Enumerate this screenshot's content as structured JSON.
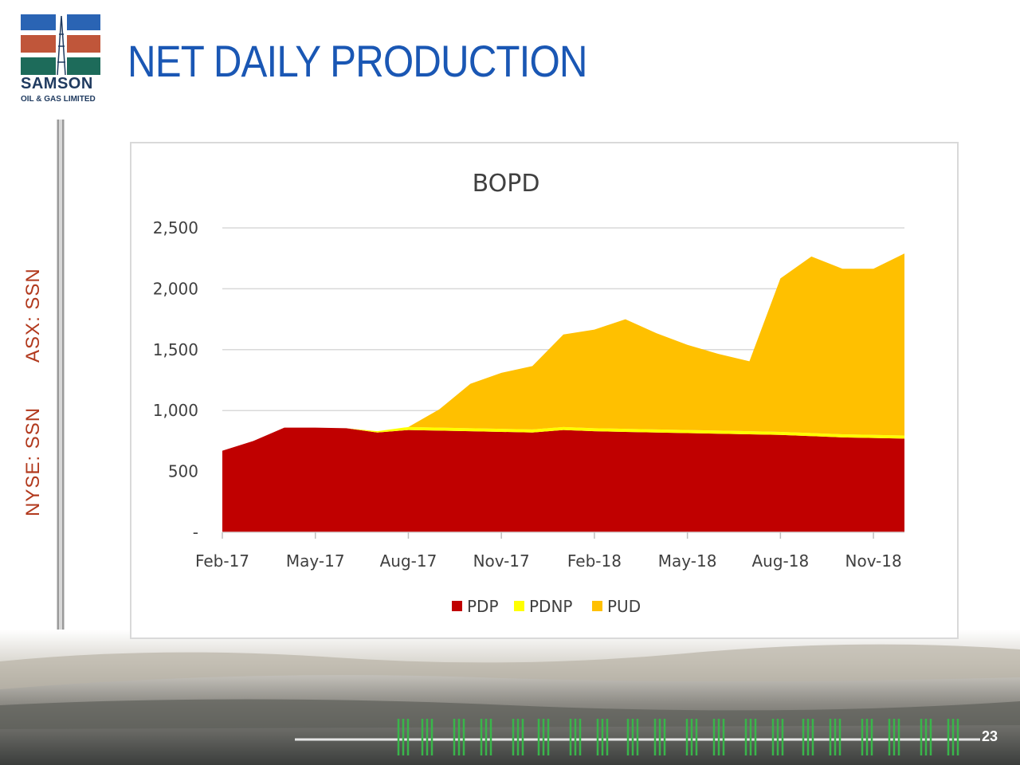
{
  "logo": {
    "name": "SAMSON",
    "tagline": "OIL & GAS LIMITED"
  },
  "page": {
    "title": "NET DAILY PRODUCTION",
    "number": "23"
  },
  "tickers": {
    "asx": "ASX: SSN",
    "nyse": "NYSE: SSN"
  },
  "colors": {
    "title": "#1a57b4",
    "ticker": "#b23a1e",
    "PDP": "#c00000",
    "PDNP": "#ffff00",
    "PUD": "#ffc000"
  },
  "chart_data": {
    "type": "area",
    "stacked": true,
    "title": "BOPD",
    "ylim": [
      0,
      2500
    ],
    "yticks": [
      {
        "value": 0,
        "label": "-"
      },
      {
        "value": 500,
        "label": "500"
      },
      {
        "value": 1000,
        "label": "1,000"
      },
      {
        "value": 1500,
        "label": "1,500"
      },
      {
        "value": 2000,
        "label": "2,000"
      },
      {
        "value": 2500,
        "label": "2,500"
      }
    ],
    "xticks": [
      "Feb-17",
      "May-17",
      "Aug-17",
      "Nov-17",
      "Feb-18",
      "May-18",
      "Aug-18",
      "Nov-18"
    ],
    "x": [
      "Feb-17",
      "Mar-17",
      "Apr-17",
      "May-17",
      "Jun-17",
      "Jul-17",
      "Aug-17",
      "Sep-17",
      "Oct-17",
      "Nov-17",
      "Dec-17",
      "Jan-18",
      "Feb-18",
      "Mar-18",
      "Apr-18",
      "May-18",
      "Jun-18",
      "Jul-18",
      "Aug-18",
      "Sep-18",
      "Oct-18",
      "Nov-18",
      "Dec-18"
    ],
    "series": [
      {
        "name": "PDP",
        "values": [
          670,
          750,
          860,
          860,
          855,
          820,
          840,
          835,
          830,
          825,
          820,
          840,
          830,
          825,
          820,
          815,
          810,
          805,
          800,
          790,
          780,
          775,
          770
        ]
      },
      {
        "name": "PDNP",
        "values": [
          0,
          0,
          0,
          0,
          0,
          10,
          25,
          25,
          25,
          25,
          25,
          25,
          25,
          25,
          25,
          25,
          25,
          25,
          25,
          25,
          25,
          25,
          25
        ]
      },
      {
        "name": "PUD",
        "values": [
          0,
          0,
          0,
          0,
          0,
          0,
          0,
          150,
          365,
          460,
          520,
          760,
          810,
          900,
          790,
          700,
          630,
          575,
          1260,
          1450,
          1360,
          1365,
          1495
        ]
      }
    ],
    "legend": "bottom",
    "grid": true
  }
}
